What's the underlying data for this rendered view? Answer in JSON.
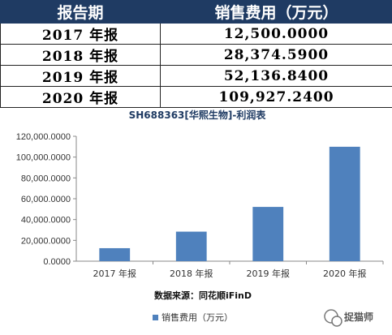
{
  "table": {
    "headers": [
      "报告期",
      "销售费用（万元）"
    ],
    "rows": [
      [
        "2017 年报",
        "12,500.0000"
      ],
      [
        "2018 年报",
        "28,374.5900"
      ],
      [
        "2019 年报",
        "52,136.8400"
      ],
      [
        "2020 年报",
        "109,927.2400"
      ]
    ]
  },
  "chart_data": {
    "type": "bar",
    "title": "SH688363[华熙生物]-利润表",
    "categories": [
      "2017 年报",
      "2018 年报",
      "2019 年报",
      "2020 年报"
    ],
    "series": [
      {
        "name": "销售费用（万元）",
        "values": [
          12500.0,
          28374.59,
          52136.84,
          109927.24
        ]
      }
    ],
    "ylim": [
      0,
      120000
    ],
    "yticks": [
      "0.0000",
      "20,000.0000",
      "40,000.0000",
      "60,000.0000",
      "80,000.0000",
      "100,000.0000",
      "120,000.0000"
    ],
    "xlabel": "",
    "ylabel": "",
    "legend_position": "bottom",
    "grid": false,
    "bar_color": "#4f81bd"
  },
  "source": "数据来源：同花顺iFinD",
  "watermark": "捉猫师"
}
